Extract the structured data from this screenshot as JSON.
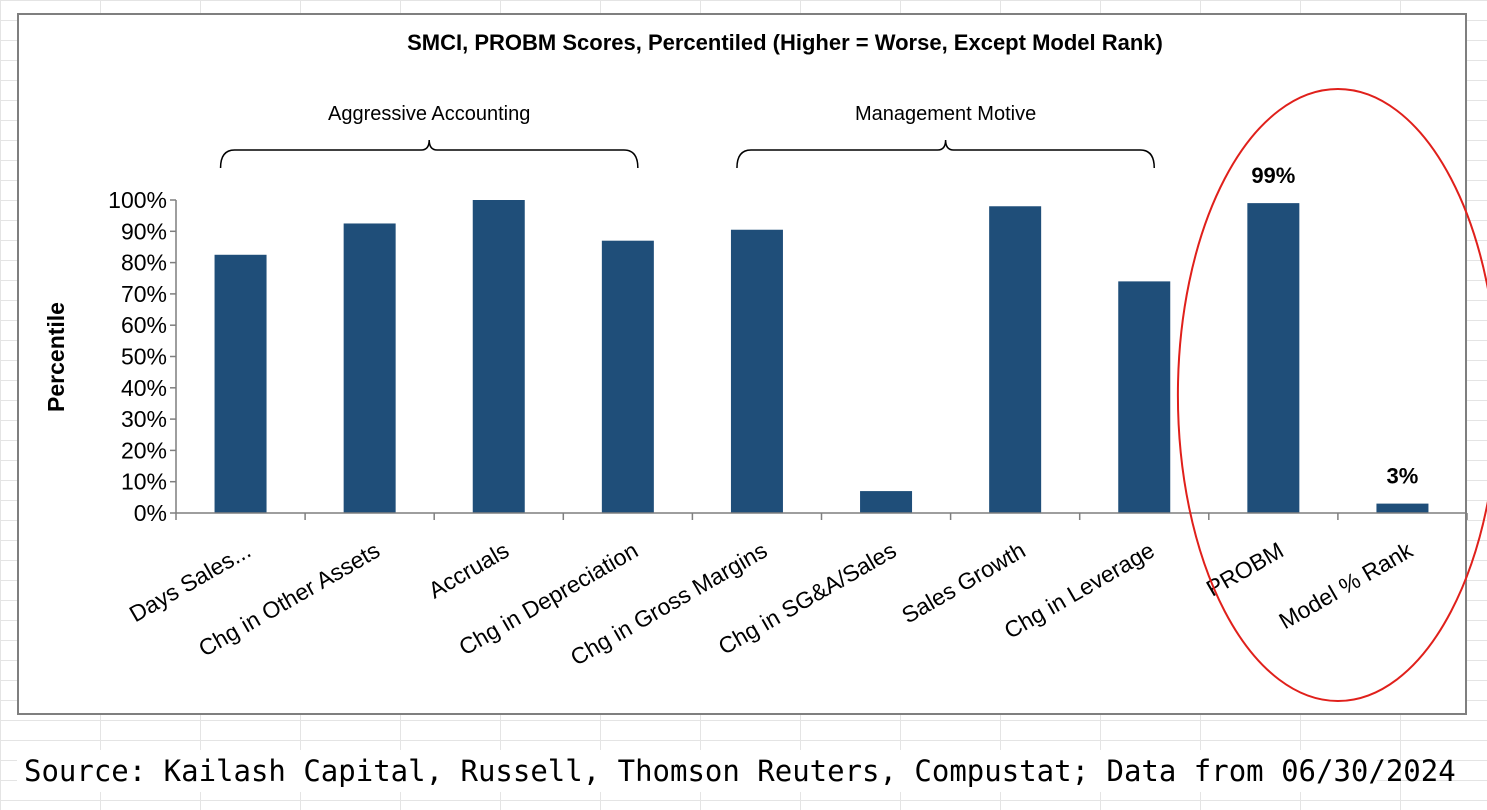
{
  "chart_data": {
    "type": "bar",
    "title": "SMCI, PROBM Scores, Percentiled (Higher = Worse, Except Model Rank)",
    "xlabel": "",
    "ylabel": "Percentile",
    "ylim": [
      0,
      100
    ],
    "yticks": [
      "0%",
      "10%",
      "20%",
      "30%",
      "40%",
      "50%",
      "60%",
      "70%",
      "80%",
      "90%",
      "100%"
    ],
    "categories": [
      "Days Sales...",
      "Chg in Other Assets",
      "Accruals",
      "Chg in Depreciation",
      "Chg in Gross Margins",
      "Chg in SG&A/Sales",
      "Sales Growth",
      "Chg in Leverage",
      "PROBM",
      "Model % Rank"
    ],
    "values": [
      82.5,
      92.5,
      100,
      87,
      90.5,
      7,
      98,
      74,
      99,
      3
    ],
    "data_labels": [
      "",
      "",
      "",
      "",
      "",
      "",
      "",
      "",
      "99%",
      "3%"
    ],
    "bar_color": "#1F4E79",
    "grid": false,
    "legend": "none",
    "annotations": {
      "groups": [
        {
          "label": "Aggressive Accounting",
          "from": 0,
          "to": 3
        },
        {
          "label": "Management Motive",
          "from": 4,
          "to": 7
        }
      ],
      "highlight": {
        "shape": "ellipse",
        "color": "#E0201B",
        "categories": [
          8,
          9
        ]
      }
    }
  },
  "footer": {
    "source": "Source: Kailash Capital, Russell, Thomson Reuters, Compustat; Data from 06/30/2024"
  }
}
